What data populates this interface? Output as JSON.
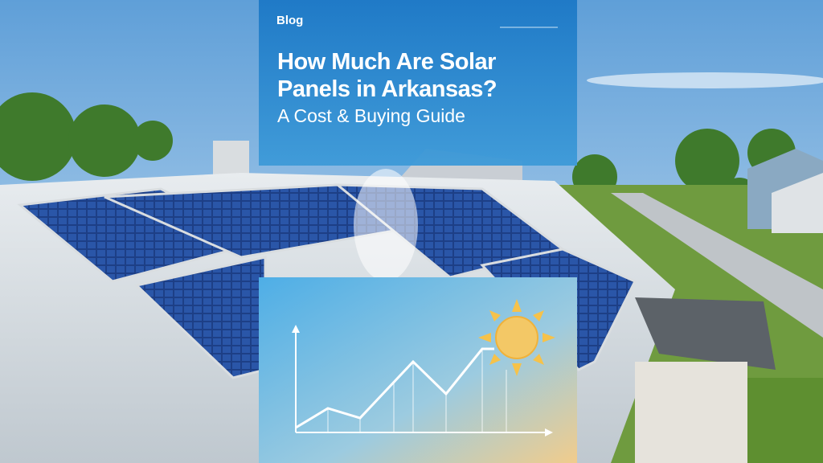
{
  "header": {
    "label": "Blog",
    "title_lines": [
      "How Much Are Solar",
      "Panels in Arkansas?"
    ],
    "subtitle": "A Cost & Buying Guide"
  }
}
